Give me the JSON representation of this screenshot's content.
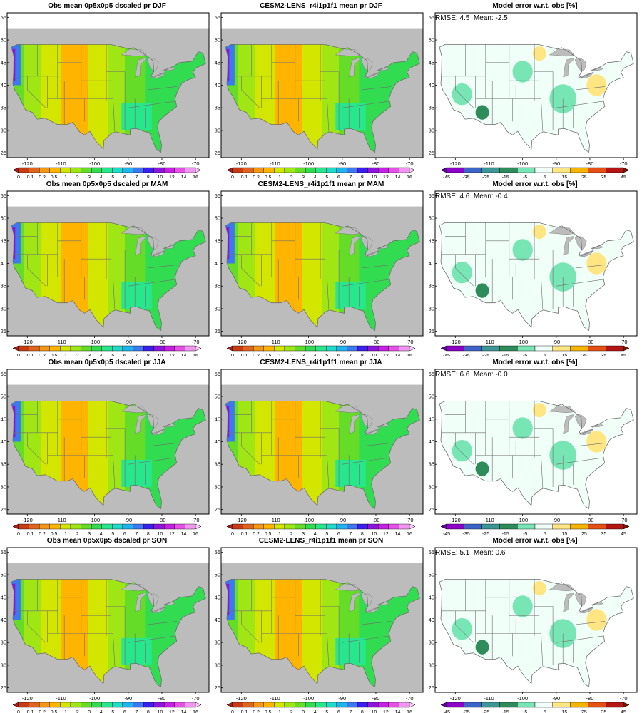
{
  "figure": {
    "seasons": [
      "DJF",
      "MAM",
      "JJA",
      "SON"
    ],
    "rows": [
      {
        "season": "DJF",
        "obs_title": "Obs mean 0p5x0p5 dscaled pr DJF",
        "model_title": "CESM2-LENS_r4i1p1f1 mean pr DJF",
        "err_title": "Model error w.r.t. obs [%]",
        "rmse": "4.5",
        "mean": "-2.5"
      },
      {
        "season": "MAM",
        "obs_title": "Obs mean 0p5x0p5 dscaled pr MAM",
        "model_title": "CESM2-LENS_r4i1p1f1 mean pr MAM",
        "err_title": "Model error w.r.t. obs [%]",
        "rmse": "4.6",
        "mean": "-0.4"
      },
      {
        "season": "JJA",
        "obs_title": "Obs mean 0p5x0p5 dscaled pr JJA",
        "model_title": "CESM2-LENS_r4i1p1f1 mean pr JJA",
        "err_title": "Model error w.r.t. obs [%]",
        "rmse": "6.6",
        "mean": "-0.0"
      },
      {
        "season": "SON",
        "obs_title": "Obs mean 0p5x0p5 dscaled pr SON",
        "model_title": "CESM2-LENS_r4i1p1f1 mean pr SON",
        "err_title": "Model error w.r.t. obs [%]",
        "rmse": "5.1",
        "mean": "0.6"
      }
    ],
    "rmse_label": "RMSE:",
    "mean_label": "Mean:"
  },
  "axes": {
    "lon_ticks": [
      -120,
      -110,
      -100,
      -90,
      -80,
      -70
    ],
    "lat_ticks": [
      25,
      30,
      35,
      40,
      45,
      50,
      55
    ],
    "lon_range": [
      -126,
      -66
    ],
    "lat_range": [
      24,
      56
    ]
  },
  "precip_colorbar": {
    "labels": [
      "0",
      "0.1",
      "0.2",
      "0.5",
      "1",
      "2",
      "3",
      "4",
      "5",
      "6",
      "7",
      "8",
      "10",
      "12",
      "14",
      "16"
    ],
    "colors": [
      "#a51e1e",
      "#c83c14",
      "#e0641e",
      "#f59614",
      "#ffb400",
      "#d2e600",
      "#a0e614",
      "#64dc28",
      "#32dc50",
      "#28e68c",
      "#1edcc8",
      "#1eb4f0",
      "#3c78f0",
      "#3c1ef0",
      "#8c14dc",
      "#c81ee6",
      "#e650e6",
      "#f096f0",
      "#fac8fa"
    ]
  },
  "error_colorbar": {
    "labels": [
      "-45",
      "-35",
      "-25",
      "-15",
      "-5",
      "5",
      "15",
      "25",
      "35",
      "45"
    ],
    "colors": [
      "#5a0096",
      "#8c00c8",
      "#3c64c8",
      "#3c9696",
      "#2d8c5a",
      "#78e6b4",
      "#f0fff8",
      "#ffe682",
      "#f5b400",
      "#e65014",
      "#b41414",
      "#781400"
    ]
  },
  "colors": {
    "ocean": "#bcbcbc",
    "lakes": "#bcbcbc",
    "borders": "#6e6e6e",
    "frame": "#000000"
  }
}
